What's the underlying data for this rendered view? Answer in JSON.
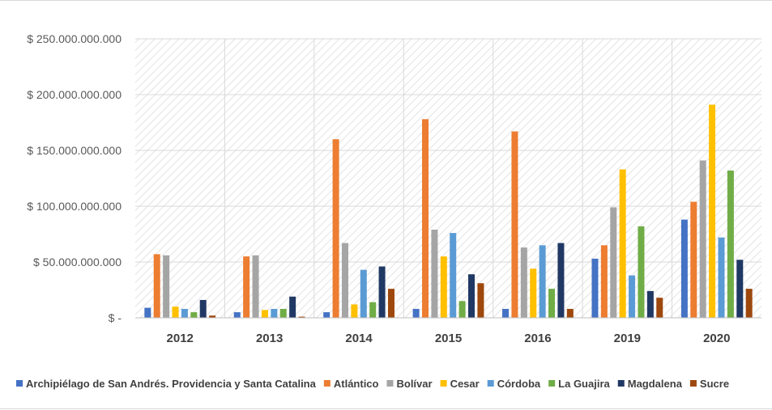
{
  "chart_data": {
    "type": "bar",
    "categories": [
      "2012",
      "2013",
      "2014",
      "2015",
      "2016",
      "2019",
      "2020"
    ],
    "ylim": [
      0,
      250000000000
    ],
    "ytick_values": [
      0,
      50000000000,
      100000000000,
      150000000000,
      200000000000,
      250000000000
    ],
    "ytick_labels": [
      "$ -",
      "$ 50.000.000.000",
      "$ 100.000.000.000",
      "$ 150.000.000.000",
      "$ 200.000.000.000",
      "$ 250.000.000.000"
    ],
    "grid": true,
    "legend_position": "bottom",
    "series": [
      {
        "name": "Archipiélago de San Andrés. Providencia y Santa Catalina",
        "color": "#4472c4",
        "values": [
          9000000000,
          5000000000,
          5000000000,
          8000000000,
          8000000000,
          53000000000,
          88000000000
        ]
      },
      {
        "name": "Atlántico",
        "color": "#ed7d31",
        "values": [
          57000000000,
          55000000000,
          160000000000,
          178000000000,
          167000000000,
          65000000000,
          104000000000
        ]
      },
      {
        "name": "Bolívar",
        "color": "#a5a5a5",
        "values": [
          56000000000,
          56000000000,
          67000000000,
          79000000000,
          63000000000,
          99000000000,
          141000000000
        ]
      },
      {
        "name": "Cesar",
        "color": "#ffc000",
        "values": [
          10000000000,
          7000000000,
          12000000000,
          55000000000,
          44000000000,
          133000000000,
          191000000000
        ]
      },
      {
        "name": "Córdoba",
        "color": "#5b9bd5",
        "values": [
          8000000000,
          8000000000,
          43000000000,
          76000000000,
          65000000000,
          38000000000,
          72000000000
        ]
      },
      {
        "name": "La Guajira",
        "color": "#70ad47",
        "values": [
          5000000000,
          8000000000,
          14000000000,
          15000000000,
          26000000000,
          82000000000,
          132000000000
        ]
      },
      {
        "name": "Magdalena",
        "color": "#203864",
        "values": [
          16000000000,
          19000000000,
          46000000000,
          39000000000,
          67000000000,
          24000000000,
          52000000000
        ]
      },
      {
        "name": "Sucre",
        "color": "#9e480e",
        "values": [
          2000000000,
          1000000000,
          26000000000,
          31000000000,
          8000000000,
          18000000000,
          26000000000
        ]
      }
    ]
  }
}
